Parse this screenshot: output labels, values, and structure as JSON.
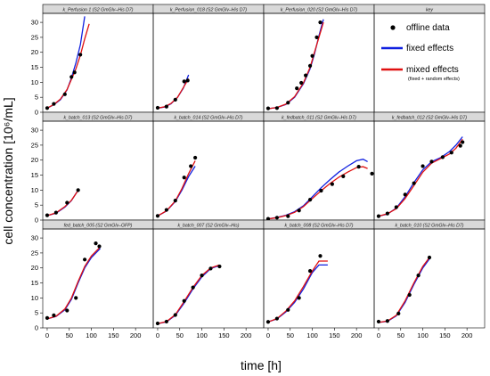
{
  "ylabel": "cell concentration [10⁶/mL]",
  "xlabel": "time [h]",
  "colors": {
    "offline": "#000000",
    "fixed": "#1020e0",
    "mixed": "#e01010",
    "strip": "#d9d9d9"
  },
  "legend": {
    "title": "key",
    "items": [
      {
        "label": "offline data",
        "sub": "",
        "type": "points"
      },
      {
        "label": "fixed effects",
        "sub": "",
        "type": "line"
      },
      {
        "label": "mixed effects",
        "sub": "(fixed + random effects)",
        "type": "line"
      }
    ]
  },
  "chart_data": {
    "type": "line",
    "xlim": [
      -10,
      240
    ],
    "ylim": [
      0,
      33
    ],
    "x_ticks": [
      0,
      50,
      100,
      150,
      200
    ],
    "y_ticks": [
      0,
      5,
      10,
      15,
      20,
      25,
      30
    ],
    "panels": [
      {
        "title": "k_Perfusion 1 (S2 GmGlv–His D7)",
        "points": [
          [
            0,
            1.4
          ],
          [
            15,
            2.8
          ],
          [
            40,
            6.0
          ],
          [
            55,
            11.8
          ],
          [
            62,
            13.3
          ],
          [
            75,
            19.2
          ]
        ],
        "fixed": [
          [
            0,
            1.4
          ],
          [
            15,
            2.5
          ],
          [
            30,
            4.2
          ],
          [
            45,
            7.5
          ],
          [
            55,
            11.5
          ],
          [
            65,
            16.5
          ],
          [
            75,
            22.5
          ],
          [
            85,
            32.0
          ]
        ],
        "mixed": [
          [
            0,
            1.4
          ],
          [
            15,
            2.6
          ],
          [
            30,
            4.4
          ],
          [
            45,
            7.6
          ],
          [
            55,
            11.0
          ],
          [
            65,
            14.5
          ],
          [
            75,
            19.0
          ],
          [
            85,
            24.5
          ],
          [
            95,
            29.5
          ]
        ]
      },
      {
        "title": "k_Perfusion_018 (S2 GmGlv–His D7)",
        "points": [
          [
            0,
            1.5
          ],
          [
            20,
            1.9
          ],
          [
            40,
            4.2
          ],
          [
            60,
            10.3
          ],
          [
            68,
            10.6
          ]
        ],
        "fixed": [
          [
            0,
            1.4
          ],
          [
            15,
            1.7
          ],
          [
            30,
            2.8
          ],
          [
            45,
            5.0
          ],
          [
            58,
            8.0
          ],
          [
            70,
            12.5
          ]
        ],
        "mixed": [
          [
            0,
            1.4
          ],
          [
            15,
            1.8
          ],
          [
            30,
            2.9
          ],
          [
            45,
            5.0
          ],
          [
            58,
            8.2
          ],
          [
            70,
            11.2
          ]
        ]
      },
      {
        "title": "k_Perfusion_020 (S2 GmGlv–His D7)",
        "points": [
          [
            0,
            1.3
          ],
          [
            20,
            1.4
          ],
          [
            45,
            3.2
          ],
          [
            65,
            8.0
          ],
          [
            75,
            9.8
          ],
          [
            85,
            12.3
          ],
          [
            95,
            15.5
          ],
          [
            100,
            18.8
          ],
          [
            110,
            25.0
          ],
          [
            118,
            30.0
          ]
        ],
        "fixed": [
          [
            0,
            1.2
          ],
          [
            20,
            1.6
          ],
          [
            40,
            2.6
          ],
          [
            60,
            5.0
          ],
          [
            80,
            9.5
          ],
          [
            95,
            14.5
          ],
          [
            105,
            19.5
          ],
          [
            115,
            25.5
          ],
          [
            125,
            31.0
          ]
        ],
        "mixed": [
          [
            0,
            1.2
          ],
          [
            20,
            1.6
          ],
          [
            40,
            2.7
          ],
          [
            60,
            5.2
          ],
          [
            80,
            9.8
          ],
          [
            95,
            15.0
          ],
          [
            105,
            20.0
          ],
          [
            115,
            25.0
          ],
          [
            125,
            30.0
          ]
        ]
      },
      {
        "title": "",
        "legend": true
      },
      {
        "title": "k_batch_013 (S2 GmGlv–His D7)",
        "points": [
          [
            0,
            1.6
          ],
          [
            20,
            2.5
          ],
          [
            45,
            5.8
          ],
          [
            70,
            10.0
          ]
        ],
        "fixed": [
          [
            0,
            1.5
          ],
          [
            20,
            2.3
          ],
          [
            40,
            4.3
          ],
          [
            55,
            6.5
          ],
          [
            70,
            10.0
          ]
        ],
        "mixed": [
          [
            0,
            1.5
          ],
          [
            20,
            2.4
          ],
          [
            40,
            4.5
          ],
          [
            55,
            6.6
          ],
          [
            70,
            9.9
          ]
        ]
      },
      {
        "title": "k_batch_014 (S2 GmGlv–His D7)",
        "points": [
          [
            0,
            1.4
          ],
          [
            20,
            3.4
          ],
          [
            40,
            6.5
          ],
          [
            60,
            14.2
          ],
          [
            75,
            18.0
          ],
          [
            85,
            20.8
          ]
        ],
        "fixed": [
          [
            0,
            1.4
          ],
          [
            20,
            3.0
          ],
          [
            40,
            6.2
          ],
          [
            55,
            10.0
          ],
          [
            70,
            14.5
          ],
          [
            85,
            18.0
          ]
        ],
        "mixed": [
          [
            0,
            1.4
          ],
          [
            20,
            3.1
          ],
          [
            40,
            6.4
          ],
          [
            55,
            10.5
          ],
          [
            70,
            15.5
          ],
          [
            85,
            19.8
          ]
        ]
      },
      {
        "title": "k_fedbatch_011 (S2 GmGlv–His D7)",
        "points": [
          [
            0,
            0.4
          ],
          [
            20,
            0.8
          ],
          [
            45,
            1.3
          ],
          [
            70,
            3.2
          ],
          [
            95,
            6.8
          ],
          [
            120,
            9.8
          ],
          [
            145,
            12.0
          ],
          [
            170,
            14.6
          ],
          [
            205,
            17.8
          ],
          [
            235,
            15.5
          ]
        ],
        "fixed": [
          [
            0,
            0.4
          ],
          [
            20,
            0.9
          ],
          [
            40,
            1.6
          ],
          [
            60,
            2.8
          ],
          [
            80,
            4.8
          ],
          [
            100,
            7.8
          ],
          [
            120,
            10.8
          ],
          [
            140,
            13.5
          ],
          [
            160,
            16.0
          ],
          [
            180,
            18.0
          ],
          [
            200,
            19.8
          ],
          [
            215,
            20.3
          ],
          [
            225,
            19.5
          ]
        ],
        "mixed": [
          [
            0,
            0.4
          ],
          [
            20,
            0.8
          ],
          [
            40,
            1.5
          ],
          [
            60,
            2.6
          ],
          [
            80,
            4.5
          ],
          [
            100,
            7.2
          ],
          [
            120,
            9.8
          ],
          [
            140,
            12.2
          ],
          [
            160,
            14.3
          ],
          [
            180,
            16.0
          ],
          [
            200,
            17.5
          ],
          [
            215,
            17.8
          ],
          [
            225,
            17.2
          ]
        ]
      },
      {
        "title": "k_fedbatch_012 (S2 GmGlv–His D7)",
        "points": [
          [
            0,
            1.3
          ],
          [
            20,
            2.2
          ],
          [
            40,
            4.3
          ],
          [
            60,
            8.5
          ],
          [
            80,
            12.3
          ],
          [
            100,
            18.0
          ],
          [
            120,
            19.5
          ],
          [
            145,
            21.0
          ],
          [
            165,
            22.5
          ],
          [
            185,
            24.8
          ],
          [
            190,
            26.0
          ]
        ],
        "fixed": [
          [
            0,
            1.3
          ],
          [
            20,
            2.0
          ],
          [
            40,
            4.0
          ],
          [
            60,
            7.8
          ],
          [
            80,
            12.5
          ],
          [
            100,
            16.8
          ],
          [
            120,
            19.5
          ],
          [
            140,
            20.8
          ],
          [
            160,
            22.8
          ],
          [
            175,
            25.0
          ],
          [
            190,
            27.8
          ]
        ],
        "mixed": [
          [
            0,
            1.3
          ],
          [
            20,
            2.1
          ],
          [
            40,
            3.8
          ],
          [
            60,
            7.2
          ],
          [
            80,
            11.5
          ],
          [
            100,
            16.0
          ],
          [
            120,
            19.0
          ],
          [
            140,
            20.5
          ],
          [
            160,
            22.0
          ],
          [
            175,
            24.0
          ],
          [
            190,
            27.0
          ]
        ]
      },
      {
        "title": "fed_batch_005 (S2 GmGlv–GFP)",
        "points": [
          [
            0,
            3.3
          ],
          [
            15,
            4.2
          ],
          [
            45,
            5.8
          ],
          [
            65,
            10.0
          ],
          [
            85,
            22.8
          ],
          [
            110,
            28.2
          ],
          [
            118,
            27.2
          ]
        ],
        "fixed": [
          [
            0,
            3.0
          ],
          [
            20,
            3.8
          ],
          [
            40,
            6.0
          ],
          [
            55,
            9.5
          ],
          [
            70,
            15.0
          ],
          [
            85,
            20.0
          ],
          [
            100,
            23.5
          ],
          [
            120,
            26.5
          ]
        ],
        "mixed": [
          [
            0,
            3.0
          ],
          [
            20,
            3.9
          ],
          [
            40,
            6.3
          ],
          [
            55,
            10.0
          ],
          [
            70,
            15.5
          ],
          [
            85,
            20.5
          ],
          [
            100,
            24.0
          ],
          [
            120,
            27.0
          ]
        ]
      },
      {
        "title": "k_batch_007 (S2 GmGlv–His)",
        "points": [
          [
            0,
            1.5
          ],
          [
            20,
            2.1
          ],
          [
            40,
            4.3
          ],
          [
            60,
            9.0
          ],
          [
            80,
            13.5
          ],
          [
            100,
            17.5
          ],
          [
            120,
            19.8
          ],
          [
            140,
            20.5
          ]
        ],
        "fixed": [
          [
            0,
            1.4
          ],
          [
            20,
            2.0
          ],
          [
            40,
            4.2
          ],
          [
            60,
            8.3
          ],
          [
            80,
            13.0
          ],
          [
            100,
            17.0
          ],
          [
            120,
            19.8
          ],
          [
            140,
            20.8
          ]
        ],
        "mixed": [
          [
            0,
            1.4
          ],
          [
            20,
            2.1
          ],
          [
            40,
            4.4
          ],
          [
            60,
            8.8
          ],
          [
            80,
            13.5
          ],
          [
            100,
            17.5
          ],
          [
            120,
            20.0
          ],
          [
            140,
            21.0
          ]
        ]
      },
      {
        "title": "k_batch_008 (S2 GmGlv–His D7)",
        "points": [
          [
            0,
            2.0
          ],
          [
            20,
            3.1
          ],
          [
            45,
            6.0
          ],
          [
            70,
            10.0
          ],
          [
            95,
            19.0
          ],
          [
            118,
            24.0
          ]
        ],
        "fixed": [
          [
            0,
            2.0
          ],
          [
            20,
            3.0
          ],
          [
            40,
            5.3
          ],
          [
            60,
            8.5
          ],
          [
            80,
            13.0
          ],
          [
            100,
            18.5
          ],
          [
            115,
            21.0
          ],
          [
            125,
            21.0
          ],
          [
            135,
            21.0
          ]
        ],
        "mixed": [
          [
            0,
            2.0
          ],
          [
            20,
            3.1
          ],
          [
            40,
            5.6
          ],
          [
            60,
            9.0
          ],
          [
            80,
            13.8
          ],
          [
            100,
            19.0
          ],
          [
            115,
            22.3
          ],
          [
            125,
            22.3
          ],
          [
            135,
            22.3
          ]
        ]
      },
      {
        "title": "k_batch_010 (S2 GmGlv–His D7)",
        "points": [
          [
            0,
            2.1
          ],
          [
            20,
            2.3
          ],
          [
            45,
            4.8
          ],
          [
            70,
            11.0
          ],
          [
            90,
            17.5
          ],
          [
            115,
            23.5
          ]
        ],
        "fixed": [
          [
            0,
            1.8
          ],
          [
            20,
            2.2
          ],
          [
            40,
            4.0
          ],
          [
            60,
            8.5
          ],
          [
            80,
            14.5
          ],
          [
            100,
            20.0
          ],
          [
            115,
            23.0
          ]
        ],
        "mixed": [
          [
            0,
            1.8
          ],
          [
            20,
            2.3
          ],
          [
            40,
            4.2
          ],
          [
            60,
            9.0
          ],
          [
            80,
            15.0
          ],
          [
            100,
            20.5
          ],
          [
            115,
            23.5
          ]
        ]
      }
    ]
  }
}
